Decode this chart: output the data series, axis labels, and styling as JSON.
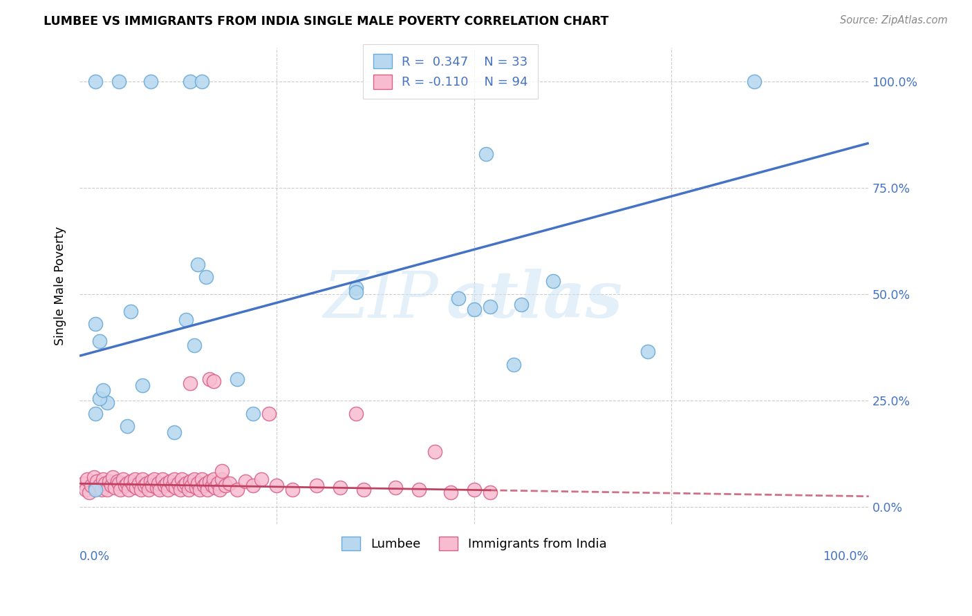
{
  "title": "LUMBEE VS IMMIGRANTS FROM INDIA SINGLE MALE POVERTY CORRELATION CHART",
  "source": "Source: ZipAtlas.com",
  "ylabel": "Single Male Poverty",
  "ytick_labels": [
    "0.0%",
    "25.0%",
    "50.0%",
    "75.0%",
    "100.0%"
  ],
  "ytick_values": [
    0.0,
    0.25,
    0.5,
    0.75,
    1.0
  ],
  "xlim": [
    0.0,
    1.0
  ],
  "ylim": [
    -0.04,
    1.08
  ],
  "lumbee_color": "#b8d8f0",
  "lumbee_edge_color": "#6aaad8",
  "india_color": "#f8bcd0",
  "india_edge_color": "#d86088",
  "trend_lumbee_color": "#4472c4",
  "trend_india_color": "#c04060",
  "r_color": "#4472c4",
  "legend_r_lumbee": "0.347",
  "legend_n_lumbee": "33",
  "legend_r_india": "-0.110",
  "legend_n_india": "94",
  "legend_lumbee_label": "Lumbee",
  "legend_india_label": "Immigrants from India",
  "trend_lumbee_start_y": 0.355,
  "trend_lumbee_end_y": 0.855,
  "trend_india_start_y": 0.055,
  "trend_india_end_y": 0.025,
  "trend_india_solid_end": 0.52,
  "lumbee_x": [
    0.02,
    0.05,
    0.09,
    0.14,
    0.155,
    0.02,
    0.035,
    0.06,
    0.35,
    0.35,
    0.02,
    0.025,
    0.065,
    0.135,
    0.2,
    0.48,
    0.5,
    0.515,
    0.56,
    0.6,
    0.72,
    0.855,
    0.025,
    0.03,
    0.08,
    0.145,
    0.22,
    0.52,
    0.55,
    0.02,
    0.12,
    0.15,
    0.16
  ],
  "lumbee_y": [
    1.0,
    1.0,
    1.0,
    1.0,
    1.0,
    0.22,
    0.245,
    0.19,
    0.515,
    0.505,
    0.43,
    0.39,
    0.46,
    0.44,
    0.3,
    0.49,
    0.465,
    0.83,
    0.475,
    0.53,
    0.365,
    1.0,
    0.255,
    0.275,
    0.285,
    0.38,
    0.22,
    0.47,
    0.335,
    0.04,
    0.175,
    0.57,
    0.54
  ],
  "india_x": [
    0.005,
    0.008,
    0.01,
    0.012,
    0.015,
    0.018,
    0.02,
    0.022,
    0.025,
    0.028,
    0.03,
    0.032,
    0.035,
    0.038,
    0.04,
    0.042,
    0.045,
    0.048,
    0.05,
    0.052,
    0.055,
    0.058,
    0.06,
    0.062,
    0.065,
    0.068,
    0.07,
    0.072,
    0.075,
    0.078,
    0.08,
    0.082,
    0.085,
    0.088,
    0.09,
    0.092,
    0.095,
    0.098,
    0.1,
    0.102,
    0.105,
    0.108,
    0.11,
    0.112,
    0.115,
    0.118,
    0.12,
    0.122,
    0.125,
    0.128,
    0.13,
    0.132,
    0.135,
    0.138,
    0.14,
    0.142,
    0.145,
    0.148,
    0.15,
    0.152,
    0.155,
    0.158,
    0.16,
    0.162,
    0.165,
    0.168,
    0.17,
    0.172,
    0.175,
    0.178,
    0.18,
    0.185,
    0.19,
    0.2,
    0.21,
    0.22,
    0.23,
    0.25,
    0.27,
    0.3,
    0.33,
    0.36,
    0.4,
    0.43,
    0.47,
    0.5,
    0.52,
    0.14,
    0.165,
    0.17,
    0.24,
    0.35,
    0.45,
    0.18
  ],
  "india_y": [
    0.055,
    0.04,
    0.065,
    0.035,
    0.05,
    0.07,
    0.045,
    0.06,
    0.05,
    0.04,
    0.065,
    0.055,
    0.04,
    0.06,
    0.05,
    0.07,
    0.045,
    0.06,
    0.055,
    0.04,
    0.065,
    0.05,
    0.055,
    0.04,
    0.06,
    0.05,
    0.065,
    0.045,
    0.055,
    0.04,
    0.065,
    0.05,
    0.055,
    0.04,
    0.06,
    0.05,
    0.065,
    0.045,
    0.055,
    0.04,
    0.065,
    0.05,
    0.055,
    0.04,
    0.06,
    0.05,
    0.065,
    0.045,
    0.055,
    0.04,
    0.065,
    0.05,
    0.055,
    0.04,
    0.06,
    0.05,
    0.065,
    0.045,
    0.055,
    0.04,
    0.065,
    0.05,
    0.055,
    0.04,
    0.06,
    0.05,
    0.065,
    0.045,
    0.055,
    0.04,
    0.065,
    0.05,
    0.055,
    0.04,
    0.06,
    0.05,
    0.065,
    0.05,
    0.04,
    0.05,
    0.045,
    0.04,
    0.045,
    0.04,
    0.035,
    0.04,
    0.035,
    0.29,
    0.3,
    0.295,
    0.22,
    0.22,
    0.13,
    0.085
  ]
}
